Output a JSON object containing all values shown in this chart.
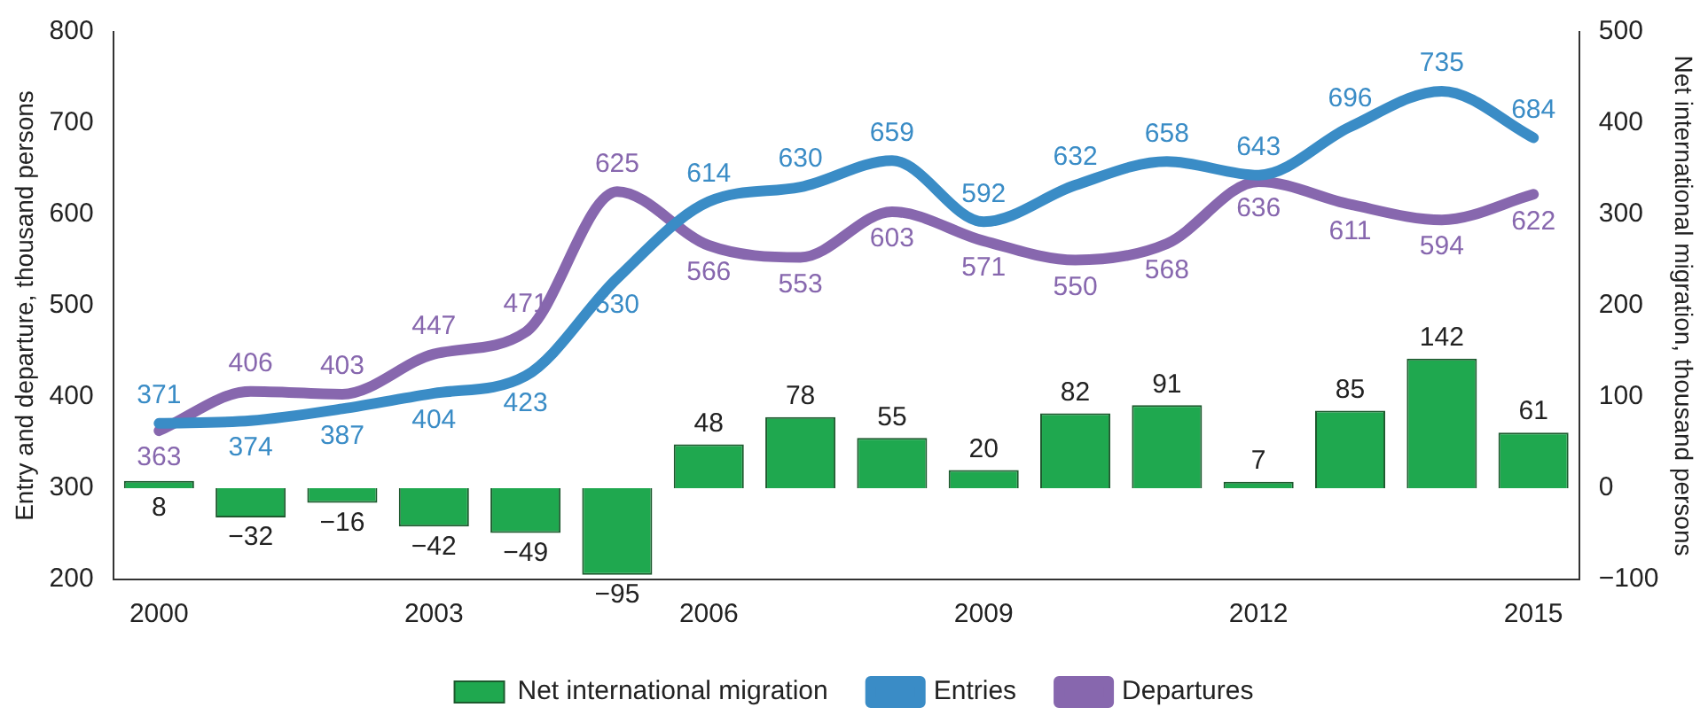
{
  "chart_data": {
    "type": "bar",
    "ylabel": "Entry and departure, thousand persons",
    "y2label": "Net international migration, thousand persons",
    "categories": [
      "2000",
      null,
      null,
      "2003",
      null,
      null,
      "2006",
      null,
      null,
      "2009",
      null,
      null,
      "2012",
      null,
      null,
      "2015"
    ],
    "series": [
      {
        "name": "Net international migration",
        "axis": "y2",
        "color": "#1fa84f",
        "values": [
          8,
          -32,
          -16,
          -42,
          -49,
          -95,
          48,
          78,
          55,
          20,
          82,
          91,
          7,
          85,
          142,
          61
        ]
      },
      {
        "name": "Entries",
        "type": "line",
        "color": "#3a8cc6",
        "values": [
          371,
          374,
          387,
          404,
          423,
          530,
          614,
          630,
          659,
          592,
          632,
          658,
          643,
          696,
          735,
          684
        ]
      },
      {
        "name": "Departures",
        "type": "line",
        "color": "#8767ae",
        "values": [
          363,
          406,
          403,
          447,
          471,
          625,
          566,
          553,
          603,
          571,
          550,
          568,
          636,
          611,
          594,
          622
        ]
      }
    ],
    "ylim": [
      200,
      800
    ],
    "yticks": [
      200,
      300,
      400,
      500,
      600,
      700,
      800
    ],
    "y2lim": [
      -100,
      500
    ],
    "y2ticks": [
      -100,
      0,
      100,
      200,
      300,
      400,
      500
    ],
    "data_labels": true,
    "grid": false,
    "legend": "bottom",
    "marker": "none"
  }
}
